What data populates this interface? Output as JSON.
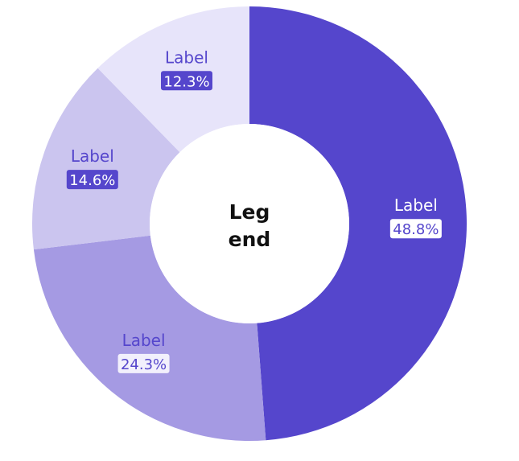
{
  "chart_data": {
    "type": "pie",
    "center_text_lines": [
      "Leg",
      "end"
    ],
    "slices": [
      {
        "label": "Label",
        "value": 48.8,
        "value_text": "48.8%",
        "color": "#5546cc",
        "label_color": "#ffffff",
        "badge_bg": "#ffffff",
        "badge_text": "#5546cc"
      },
      {
        "label": "Label",
        "value": 24.3,
        "value_text": "24.3%",
        "color": "#a59ae3",
        "label_color": "#5546cc",
        "badge_bg": "#f2f0fc",
        "badge_text": "#5546cc"
      },
      {
        "label": "Label",
        "value": 14.6,
        "value_text": "14.6%",
        "color": "#cbc5ef",
        "label_color": "#5546cc",
        "badge_bg": "#5546cc",
        "badge_text": "#ffffff"
      },
      {
        "label": "Label",
        "value": 12.3,
        "value_text": "12.3%",
        "color": "#e7e4fa",
        "label_color": "#5546cc",
        "badge_bg": "#5546cc",
        "badge_text": "#ffffff"
      }
    ]
  }
}
